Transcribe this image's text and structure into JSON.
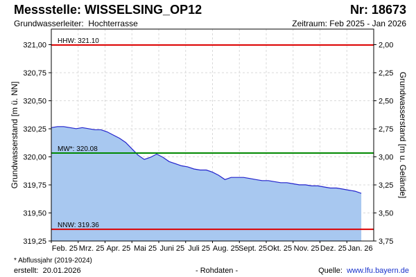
{
  "header": {
    "title": "Messstelle: WISSELSING_OP12",
    "station_nr": "Nr: 18673",
    "aquifer_label": "Grundwasserleiter:",
    "aquifer_value": "Hochterrasse",
    "period": "Zeitraum: Feb 2025 - Jan 2026"
  },
  "footer": {
    "footnote": "* Abflussjahr (2019-2024)",
    "created_label": "erstellt:",
    "created_date": "20.01.2026",
    "raw_note": "- Rohdaten -",
    "source_label": "Quelle:",
    "source_url": "www.lfu.bayern.de"
  },
  "colors": {
    "fill": "#a8c8f0",
    "line": "#2222cc",
    "hhw_nnw": "#dd0000",
    "mw": "#008800",
    "grid": "#d9d9d9"
  },
  "chart_data": {
    "type": "area",
    "ylabel_left": "Grundwasserstand [m ü. NN]",
    "ylabel_right": "Grundwasserstand [m u. Gelände]",
    "ylim": [
      319.25,
      321.25
    ],
    "yticks_left": [
      "321,00",
      "320,75",
      "320,50",
      "320,25",
      "320,00",
      "319,75",
      "319,50",
      "319,25"
    ],
    "yticks_right": [
      "2,00",
      "2,25",
      "2,50",
      "2,75",
      "3,00",
      "3,25",
      "3,50",
      "3,75"
    ],
    "xlim": [
      "2025-02-01",
      "2026-01-31"
    ],
    "xticks": [
      "Feb. 25",
      "Mrz. 25",
      "Apr. 25",
      "Mai 25",
      "Juni 25",
      "Juli 25",
      "Aug. 25",
      "Sept. 25",
      "Okt. 25",
      "Nov. 25",
      "Dez. 25",
      "Jan. 26"
    ],
    "grid": true,
    "reference_lines": [
      {
        "label": "HHW: 321.10",
        "value": 321.1
      },
      {
        "label": "MW*: 320.08",
        "value": 320.08
      },
      {
        "label": "NNW: 319.36",
        "value": 319.36
      }
    ],
    "series": [
      {
        "x": [
          "2025-02-01",
          "2025-02-08",
          "2025-02-15",
          "2025-02-22",
          "2025-03-01",
          "2025-03-08",
          "2025-03-15",
          "2025-03-22",
          "2025-03-29",
          "2025-04-05",
          "2025-04-12",
          "2025-04-19",
          "2025-04-26",
          "2025-05-03",
          "2025-05-10",
          "2025-05-17",
          "2025-05-24",
          "2025-05-31",
          "2025-06-07",
          "2025-06-14",
          "2025-06-21",
          "2025-06-28",
          "2025-07-05",
          "2025-07-12",
          "2025-07-19",
          "2025-07-26",
          "2025-08-02",
          "2025-08-09",
          "2025-08-16",
          "2025-08-23",
          "2025-08-30",
          "2025-09-06",
          "2025-09-13",
          "2025-09-20",
          "2025-09-27",
          "2025-10-04",
          "2025-10-11",
          "2025-10-18",
          "2025-10-25",
          "2025-11-01",
          "2025-11-08",
          "2025-11-15",
          "2025-11-22",
          "2025-11-29",
          "2025-12-06",
          "2025-12-13",
          "2025-12-20",
          "2025-12-27",
          "2026-01-03",
          "2026-01-10",
          "2026-01-17"
        ],
        "y": [
          320.32,
          320.33,
          320.33,
          320.32,
          320.31,
          320.32,
          320.31,
          320.3,
          320.3,
          320.28,
          320.25,
          320.22,
          320.18,
          320.12,
          320.06,
          320.02,
          320.04,
          320.07,
          320.04,
          320.0,
          319.98,
          319.96,
          319.95,
          319.93,
          319.92,
          319.92,
          319.9,
          319.87,
          319.83,
          319.85,
          319.85,
          319.85,
          319.84,
          319.83,
          319.82,
          319.82,
          319.81,
          319.8,
          319.8,
          319.79,
          319.78,
          319.78,
          319.77,
          319.77,
          319.76,
          319.75,
          319.75,
          319.74,
          319.73,
          319.72,
          319.7
        ]
      }
    ]
  }
}
